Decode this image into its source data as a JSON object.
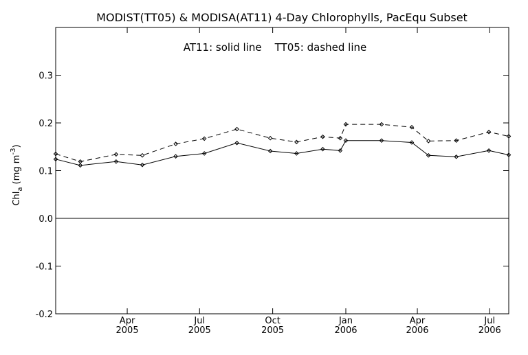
{
  "chart_data": {
    "type": "line",
    "title": "MODIST(TT05) & MODISA(AT11) 4-Day Chlorophylls, PacEqu Subset",
    "annotation": "AT11: solid line    TT05: dashed line",
    "ylabel": "Chl_a (mg m^-3)",
    "ylabel_parts": {
      "main": "Chl",
      "sub": "a",
      "unit_open": " (mg m",
      "sup": "-3",
      "close": ")"
    },
    "xlabel": "",
    "ylim": [
      -0.2,
      0.4
    ],
    "xlim": [
      "2005-01-01",
      "2006-07-25"
    ],
    "yticks": [
      -0.2,
      -0.1,
      0.0,
      0.1,
      0.2,
      0.3
    ],
    "ytick_labels": [
      "-0.2",
      "-0.1",
      "0.0",
      "0.1",
      "0.2",
      "0.3"
    ],
    "xticks": [
      {
        "date": "2005-04-01",
        "label": "Apr",
        "year": "2005"
      },
      {
        "date": "2005-07-01",
        "label": "Jul",
        "year": "2005"
      },
      {
        "date": "2005-10-01",
        "label": "Oct",
        "year": "2005"
      },
      {
        "date": "2006-01-01",
        "label": "Jan",
        "year": "2006"
      },
      {
        "date": "2006-04-01",
        "label": "Apr",
        "year": "2006"
      },
      {
        "date": "2006-07-01",
        "label": "Jul",
        "year": "2006"
      }
    ],
    "zero_line": true,
    "grid": false,
    "series": [
      {
        "name": "AT11",
        "style": "solid",
        "color": "#000000",
        "x": [
          "2005-01-01",
          "2005-02-01",
          "2005-03-18",
          "2005-04-20",
          "2005-06-01",
          "2005-07-07",
          "2005-08-17",
          "2005-09-28",
          "2005-10-31",
          "2005-12-03",
          "2005-12-25",
          "2006-01-01",
          "2006-02-15",
          "2006-03-25",
          "2006-04-15",
          "2006-05-20",
          "2006-06-30",
          "2006-07-25"
        ],
        "y": [
          0.124,
          0.111,
          0.119,
          0.112,
          0.13,
          0.136,
          0.158,
          0.141,
          0.136,
          0.145,
          0.142,
          0.163,
          0.163,
          0.159,
          0.132,
          0.129,
          0.142,
          0.133
        ]
      },
      {
        "name": "TT05",
        "style": "dashed",
        "color": "#000000",
        "x": [
          "2005-01-01",
          "2005-02-01",
          "2005-03-18",
          "2005-04-20",
          "2005-06-01",
          "2005-07-07",
          "2005-08-17",
          "2005-09-28",
          "2005-10-31",
          "2005-12-03",
          "2005-12-25",
          "2006-01-01",
          "2006-02-15",
          "2006-03-25",
          "2006-04-15",
          "2006-05-20",
          "2006-06-30",
          "2006-07-25"
        ],
        "y": [
          0.135,
          0.119,
          0.134,
          0.132,
          0.156,
          0.167,
          0.187,
          0.168,
          0.16,
          0.171,
          0.168,
          0.197,
          0.197,
          0.191,
          0.162,
          0.163,
          0.181,
          0.172
        ]
      }
    ]
  }
}
